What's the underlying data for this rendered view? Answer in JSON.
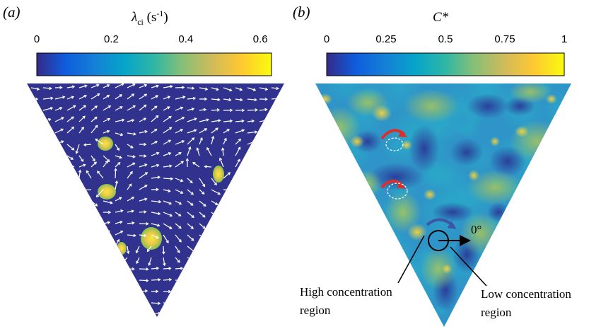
{
  "panel_a": {
    "label": "(a)",
    "colorbar": {
      "title_symbol": "λ",
      "title_subscript": "ci",
      "title_unit_open": " (s",
      "title_unit_sup": "-1",
      "title_unit_close": ")",
      "ticks": [
        "0",
        "0.2",
        "0.4",
        "0.6"
      ],
      "range": [
        0,
        0.63
      ]
    },
    "colormap": "parula",
    "background_color": "#31328e",
    "vector_color": "#ffffff",
    "vortex_color_center": "#f2e23a",
    "vortex_color_edge": "#8fc84a"
  },
  "panel_b": {
    "label": "(b)",
    "colorbar": {
      "title_text": "C*",
      "ticks": [
        "0",
        "0.25",
        "0.5",
        "0.75",
        "1"
      ],
      "range": [
        0,
        1
      ]
    },
    "colormap": "parula",
    "angle_label": "0°",
    "annotation_high": [
      "High concentration",
      "region"
    ],
    "annotation_low": [
      "Low concentration",
      "region"
    ],
    "swirl_color_red": "#d9302b",
    "swirl_color_blue": "#3d56a6"
  }
}
